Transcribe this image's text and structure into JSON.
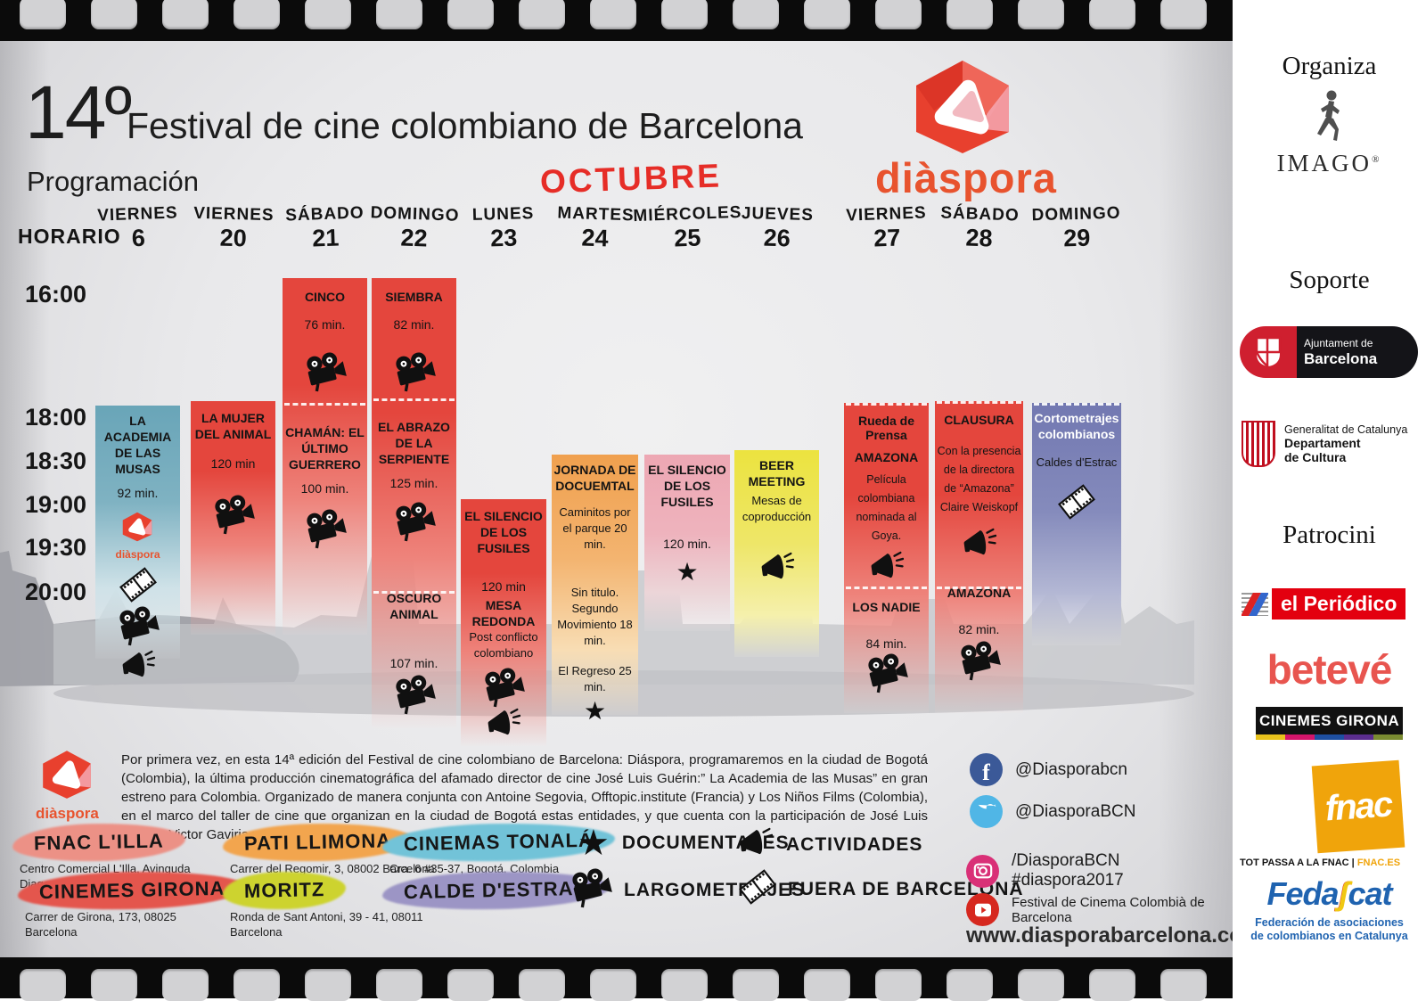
{
  "header": {
    "edition": "14º",
    "title": "Festival de cine colombiano de Barcelona",
    "subtitle": "Programación",
    "month": "OCTUBRE",
    "brand": "diàspora",
    "horario_label": "HORARIO"
  },
  "schedule": {
    "times": [
      "16:00",
      "18:00",
      "18:30",
      "19:00",
      "19:30",
      "20:00"
    ],
    "columns": [
      {
        "day": "VIERNES",
        "num": "6",
        "entries": [
          {
            "k": "title",
            "v": "LA ACADEMIA DE LAS MUSAS"
          },
          {
            "k": "dur",
            "v": "92 min."
          },
          {
            "k": "dlogo",
            "v": "diàspora"
          },
          {
            "k": "film"
          },
          {
            "k": "camera"
          },
          {
            "k": "megaphone"
          }
        ]
      },
      {
        "day": "VIERNES",
        "num": "20",
        "entries": [
          {
            "k": "title",
            "v": "LA MUJER DEL ANIMAL"
          },
          {
            "k": "dur",
            "v": "120 min"
          },
          {
            "k": "camera"
          }
        ]
      },
      {
        "day": "SÁBADO",
        "num": "21",
        "entries": [
          {
            "k": "title",
            "v": "CINCO"
          },
          {
            "k": "dur",
            "v": "76 min."
          },
          {
            "k": "camera"
          },
          {
            "k": "title",
            "v": "CHAMÁN: EL ÚLTIMO GUERRERO"
          },
          {
            "k": "dur",
            "v": "100 min."
          },
          {
            "k": "camera"
          }
        ]
      },
      {
        "day": "DOMINGO",
        "num": "22",
        "entries": [
          {
            "k": "title",
            "v": "SIEMBRA"
          },
          {
            "k": "dur",
            "v": "82 min."
          },
          {
            "k": "camera"
          },
          {
            "k": "title",
            "v": "EL ABRAZO DE LA SERPIENTE"
          },
          {
            "k": "dur",
            "v": "125 min."
          },
          {
            "k": "camera"
          },
          {
            "k": "title",
            "v": "OSCURO ANIMAL"
          },
          {
            "k": "dur",
            "v": "107 min."
          },
          {
            "k": "camera"
          }
        ]
      },
      {
        "day": "LUNES",
        "num": "23",
        "entries": [
          {
            "k": "title",
            "v": "EL SILENCIO DE LOS FUSILES"
          },
          {
            "k": "dur",
            "v": "120 min"
          },
          {
            "k": "title",
            "v": "MESA REDONDA"
          },
          {
            "k": "text",
            "v": "Post conflicto colombiano"
          },
          {
            "k": "camera"
          },
          {
            "k": "megaphone"
          }
        ]
      },
      {
        "day": "MARTES",
        "num": "24",
        "entries": [
          {
            "k": "title",
            "v": "JORNADA DE DOCUEMTAL"
          },
          {
            "k": "text",
            "v": "Caminitos por el parque 20 min."
          },
          {
            "k": "text",
            "v": "Sin titulo. Segundo Movimiento 18 min."
          },
          {
            "k": "text",
            "v": "El Regreso 25 min."
          },
          {
            "k": "star"
          }
        ]
      },
      {
        "day": "MIÉRCOLES",
        "num": "25",
        "entries": [
          {
            "k": "title",
            "v": "EL SILENCIO DE LOS FUSILES"
          },
          {
            "k": "dur",
            "v": "120 min."
          },
          {
            "k": "star"
          }
        ]
      },
      {
        "day": "JUEVES",
        "num": "26",
        "entries": [
          {
            "k": "title",
            "v": "BEER MEETING"
          },
          {
            "k": "text",
            "v": "Mesas de coproducción"
          },
          {
            "k": "megaphone"
          }
        ]
      },
      {
        "day": "VIERNES",
        "num": "27",
        "entries": [
          {
            "k": "small",
            "v": "Rueda de Prensa"
          },
          {
            "k": "title",
            "v": "AMAZONA"
          },
          {
            "k": "textlg",
            "v": "Película colombiana nominada al Goya."
          },
          {
            "k": "megaphone"
          },
          {
            "k": "title",
            "v": "LOS NADIE"
          },
          {
            "k": "dur",
            "v": "84 min."
          },
          {
            "k": "camera"
          }
        ]
      },
      {
        "day": "SÁBADO",
        "num": "28",
        "entries": [
          {
            "k": "title",
            "v": "CLAUSURA"
          },
          {
            "k": "textlg",
            "v": "Con la presencia de la directora de “Amazona” Claire Weiskopf"
          },
          {
            "k": "megaphone"
          },
          {
            "k": "title",
            "v": "AMAZONA"
          },
          {
            "k": "dur",
            "v": "82 min."
          },
          {
            "k": "camera"
          }
        ]
      },
      {
        "day": "DOMINGO",
        "num": "29",
        "entries": [
          {
            "k": "titlew",
            "v": "Cortometrajes colombianos"
          },
          {
            "k": "text",
            "v": "Caldes d'Estrac"
          },
          {
            "k": "film"
          }
        ]
      }
    ]
  },
  "paragraph": "Por primera vez, en esta 14ª edición del Festival de cine colombiano de Barcelona: Diáspora, programaremos en la ciudad de Bogotá (Colombia), la última producción cinematográfica del afamado director de cine José Luis Guérin:” La Academia de las Musas” en gran estreno para Colombia.  Organizado de manera conjunta con Antoine Segovia, Offtopic.institute (Francia) y Los Niños Films (Colombia), en el marco del taller de cine que organizan en la ciudad de Bogotá estas entidades, y que cuenta con la participación de José Luis Guérin, Victor Gaviria y Luis Ospina.",
  "venues": [
    {
      "name": "FNAC L'ILLA",
      "address": "Centro Comercial L'Illa, Avinguda Diagonal, 549, 08029 Barcelona",
      "color": "#ec9186"
    },
    {
      "name": "CINEMES GIRONA",
      "address": "Carrer de Girona, 173, 08025 Barcelona",
      "color": "#e4564d"
    },
    {
      "name": "PATI LLIMONA",
      "address": "Carrer del Regomir, 3, 08002 Barcelona",
      "color": "#f2a54e"
    },
    {
      "name": "MORITZ",
      "address": "Ronda de Sant Antoni, 39 - 41, 08011 Barcelona",
      "color": "#cdd32f"
    },
    {
      "name": "CINEMAS TONALÁ",
      "address": "Cra. 6 #35-37, Bogotá, Colombia",
      "color": "#72c3d8"
    },
    {
      "name": "CALDE D'ESTRAC",
      "address": "",
      "color": "#9c95c5"
    }
  ],
  "legend": [
    {
      "icon": "star",
      "label": "DOCUMENTALES"
    },
    {
      "icon": "megaphone",
      "label": "ACTIVIDADES"
    },
    {
      "icon": "camera",
      "label": "LARGOMETRAJES"
    },
    {
      "icon": "film",
      "label": "FUERA DE BARCELONA"
    }
  ],
  "social": [
    {
      "network": "facebook",
      "handle": "@Diasporabcn",
      "color": "#3b5998"
    },
    {
      "network": "twitter",
      "handle": "@DiasporaBCN",
      "color": "#50b6e6"
    },
    {
      "network": "instagram",
      "handle": "/DiasporaBCN\n#diaspora2017",
      "color": "#d93077"
    },
    {
      "network": "youtube",
      "handle": "Festival de Cinema Colombià de Barcelona",
      "color": "#d6281f"
    }
  ],
  "website": "www.diasporabarcelona.com",
  "sidebar": {
    "organiza_label": "Organiza",
    "imago": "IMAGO",
    "soporte_label": "Soporte",
    "ajuntament_line1": "Ajuntament de",
    "ajuntament_line2": "Barcelona",
    "gencat_line1": "Generalitat de Catalunya",
    "gencat_line2": "Departament",
    "gencat_line3": "de Cultura",
    "patrocini_label": "Patrocini",
    "elperiodico": "el Periódico",
    "beteve": "betevé",
    "cinemes_girona": "CINEMES GIRONA",
    "fnac": "fnac",
    "fnac_tagline": "TOT PASSA A LA FNAC |",
    "fnac_url": "FNAC.ES",
    "fedascat_a": "Feda",
    "fedascat_b": "cat",
    "fedascat_tag1": "Federación de asociaciones",
    "fedascat_tag2": "de colombianos en Catalunya"
  }
}
